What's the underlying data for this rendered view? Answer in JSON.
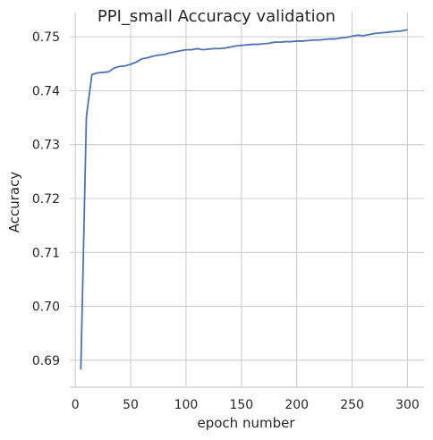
{
  "chart_data": {
    "type": "line",
    "title": "PPI_small Accuracy validation",
    "xlabel": "epoch number",
    "ylabel": "Accuracy",
    "xlim": [
      -5,
      315
    ],
    "ylim": [
      0.685,
      0.7545
    ],
    "xticks": [
      0,
      50,
      100,
      150,
      200,
      250,
      300
    ],
    "yticks": [
      0.69,
      0.7,
      0.71,
      0.72,
      0.73,
      0.74,
      0.75
    ],
    "xtick_labels": [
      "0",
      "50",
      "100",
      "150",
      "200",
      "250",
      "300"
    ],
    "ytick_labels": [
      "0.69",
      "0.70",
      "0.71",
      "0.72",
      "0.73",
      "0.74",
      "0.75"
    ],
    "grid": true,
    "colors": {
      "series": "#4c72b0",
      "grid": "#cccccc",
      "text": "#262626"
    },
    "series": [
      {
        "x": [
          5,
          10,
          15,
          20,
          25,
          30,
          35,
          40,
          45,
          50,
          55,
          60,
          65,
          70,
          75,
          80,
          85,
          90,
          95,
          100,
          105,
          110,
          115,
          120,
          125,
          130,
          135,
          140,
          145,
          150,
          155,
          160,
          165,
          170,
          175,
          180,
          185,
          190,
          195,
          200,
          205,
          210,
          215,
          220,
          225,
          230,
          235,
          240,
          245,
          250,
          255,
          260,
          265,
          270,
          275,
          280,
          285,
          290,
          295,
          300
        ],
        "y": [
          0.6883,
          0.7352,
          0.743,
          0.7433,
          0.7434,
          0.7435,
          0.7442,
          0.7445,
          0.7446,
          0.7449,
          0.7453,
          0.7459,
          0.7461,
          0.7464,
          0.7466,
          0.7467,
          0.747,
          0.7472,
          0.7474,
          0.7476,
          0.7476,
          0.7478,
          0.7476,
          0.7477,
          0.7478,
          0.7478,
          0.7479,
          0.7481,
          0.7483,
          0.7484,
          0.7485,
          0.7486,
          0.7486,
          0.7487,
          0.7488,
          0.749,
          0.749,
          0.7491,
          0.7491,
          0.7492,
          0.7492,
          0.7493,
          0.7494,
          0.7494,
          0.7495,
          0.7496,
          0.7496,
          0.7498,
          0.7499,
          0.7501,
          0.7503,
          0.7502,
          0.7504,
          0.7506,
          0.7507,
          0.7508,
          0.7509,
          0.751,
          0.7511,
          0.7513
        ]
      }
    ]
  }
}
